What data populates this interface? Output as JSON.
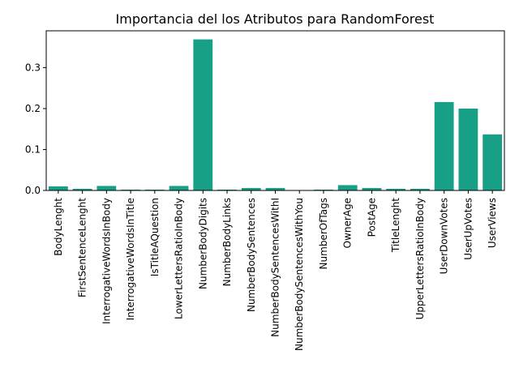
{
  "chart_data": {
    "type": "bar",
    "title": "Importancia del los Atributos para RandomForest",
    "xlabel": "",
    "ylabel": "",
    "ylim": [
      0,
      0.39
    ],
    "yticks": [
      0.0,
      0.1,
      0.2,
      0.3
    ],
    "ytick_labels": [
      "0.0",
      "0.1",
      "0.2",
      "0.3"
    ],
    "bar_color": "#17a085",
    "categories": [
      "BodyLenght",
      "FirstSentenceLenght",
      "InterrogativeWordsInBody",
      "InterrogativeWordsInTitle",
      "IsTitleAQuestion",
      "LowerLettersRatioInBody",
      "NumberBodyDigits",
      "NumberBodyLinks",
      "NumberBodySentences",
      "NumberBodySentencesWithI",
      "NumberBodySentencesWithYou",
      "NumberOfTags",
      "OwnerAge",
      "PostAge",
      "TitleLenght",
      "UpperLettersRatioInBody",
      "UserDownVotes",
      "UserUpVotes",
      "UserViews"
    ],
    "values": [
      0.01,
      0.004,
      0.011,
      0.002,
      0.002,
      0.011,
      0.369,
      0.002,
      0.006,
      0.006,
      0.0005,
      0.002,
      0.013,
      0.006,
      0.004,
      0.004,
      0.216,
      0.2,
      0.137
    ]
  }
}
